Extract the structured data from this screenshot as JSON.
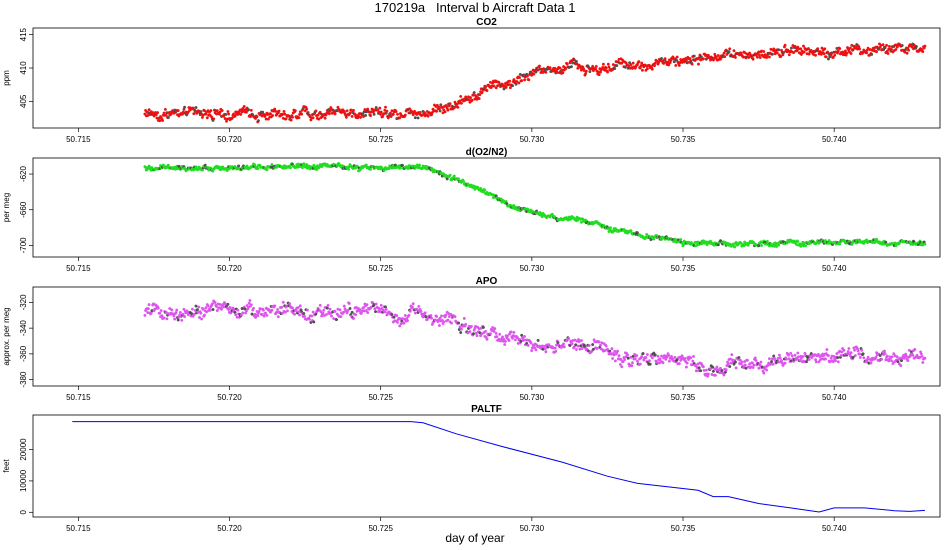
{
  "title": "170219a   Interval b Aircraft Data 1",
  "xlabel": "day of year",
  "chart_data": [
    {
      "type": "scatter",
      "title": "CO2",
      "ylabel": "ppm",
      "xlim": [
        50.7135,
        50.7435
      ],
      "ylim": [
        401,
        416
      ],
      "xticks": [
        50.715,
        50.72,
        50.725,
        50.73,
        50.735,
        50.74
      ],
      "xtick_labels": [
        "50.715",
        "50.720",
        "50.725",
        "50.730",
        "50.735",
        "50.740"
      ],
      "yticks": [
        405,
        410,
        415
      ],
      "ytick_labels": [
        "405",
        "410",
        "415"
      ],
      "color": "#ee1111",
      "x_range": [
        50.7172,
        50.743
      ],
      "n_points": 1100,
      "trend": {
        "x": [
          50.7172,
          50.72,
          50.7265,
          50.7275,
          50.7285,
          50.7295,
          50.731,
          50.733,
          50.735,
          50.737,
          50.739,
          50.741,
          50.743
        ],
        "y": [
          403.3,
          403.1,
          403.5,
          404.6,
          406.8,
          408.6,
          410.0,
          410.3,
          411.6,
          411.9,
          412.6,
          412.8,
          413.0
        ]
      },
      "noise": 0.9
    },
    {
      "type": "scatter",
      "title": "d(O2/N2)",
      "ylabel": "per meg",
      "xlim": [
        50.7135,
        50.7435
      ],
      "ylim": [
        -713,
        -602
      ],
      "xticks": [
        50.715,
        50.72,
        50.725,
        50.73,
        50.735,
        50.74
      ],
      "xtick_labels": [
        "50.715",
        "50.720",
        "50.725",
        "50.730",
        "50.735",
        "50.740"
      ],
      "yticks": [
        -620,
        -660,
        -700
      ],
      "ytick_labels": [
        "-620",
        "-660",
        "-700"
      ],
      "color": "#22dd22",
      "x_range": [
        50.7172,
        50.743
      ],
      "n_points": 1100,
      "trend": {
        "x": [
          50.7172,
          50.7265,
          50.7275,
          50.7285,
          50.7295,
          50.7305,
          50.7315,
          50.733,
          50.735,
          50.737,
          50.74,
          50.743
        ],
        "y": [
          -611.5,
          -613.5,
          -624,
          -642,
          -657,
          -667,
          -670,
          -684,
          -697,
          -699,
          -696,
          -696
        ]
      },
      "noise": 3.2
    },
    {
      "type": "scatter",
      "title": "APO",
      "ylabel": "approx. per meg",
      "xlim": [
        50.7135,
        50.7435
      ],
      "ylim": [
        -385,
        -308
      ],
      "xticks": [
        50.715,
        50.72,
        50.725,
        50.73,
        50.735,
        50.74
      ],
      "xtick_labels": [
        "50.715",
        "50.720",
        "50.725",
        "50.730",
        "50.735",
        "50.740"
      ],
      "yticks": [
        -320,
        -340,
        -360,
        -380
      ],
      "ytick_labels": [
        "-320",
        "-340",
        "-360",
        "-380"
      ],
      "color": "#dd55ee",
      "x_range": [
        50.7172,
        50.743
      ],
      "n_points": 1100,
      "trend": {
        "x": [
          50.7172,
          50.721,
          50.7265,
          50.728,
          50.73,
          50.732,
          50.734,
          50.736,
          50.738,
          50.74,
          50.743
        ],
        "y": [
          -327,
          -326,
          -329,
          -340,
          -352,
          -356,
          -365,
          -371,
          -365,
          -362,
          -361
        ]
      },
      "noise": 6
    },
    {
      "type": "line",
      "title": "PALTF",
      "ylabel": "feet",
      "xlim": [
        50.7135,
        50.7435
      ],
      "ylim": [
        -1500,
        31000
      ],
      "xticks": [
        50.715,
        50.72,
        50.725,
        50.73,
        50.735,
        50.74
      ],
      "xtick_labels": [
        "50.715",
        "50.720",
        "50.725",
        "50.730",
        "50.735",
        "50.740"
      ],
      "yticks": [
        0,
        10000,
        20000
      ],
      "ytick_labels": [
        "0",
        "10000",
        "20000"
      ],
      "color": "#0000ee",
      "x": [
        50.7148,
        50.72,
        50.726,
        50.7264,
        50.7275,
        50.729,
        50.731,
        50.7325,
        50.7335,
        50.7355,
        50.736,
        50.7365,
        50.7375,
        50.7385,
        50.7395,
        50.74,
        50.741,
        50.742,
        50.7425,
        50.743
      ],
      "y": [
        28900,
        28900,
        28900,
        28500,
        25000,
        21000,
        16000,
        11500,
        9200,
        7000,
        5000,
        5000,
        2800,
        1500,
        100,
        1400,
        1400,
        500,
        300,
        600
      ]
    }
  ]
}
